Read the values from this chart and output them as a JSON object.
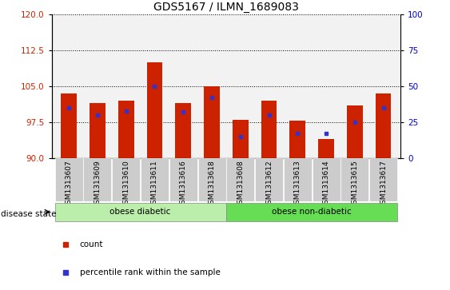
{
  "title": "GDS5167 / ILMN_1689083",
  "samples": [
    "GSM1313607",
    "GSM1313609",
    "GSM1313610",
    "GSM1313611",
    "GSM1313616",
    "GSM1313618",
    "GSM1313608",
    "GSM1313612",
    "GSM1313613",
    "GSM1313614",
    "GSM1313615",
    "GSM1313617"
  ],
  "count_values": [
    103.5,
    101.5,
    102.0,
    110.0,
    101.5,
    105.0,
    98.0,
    102.0,
    97.8,
    94.0,
    101.0,
    103.5
  ],
  "percentile_values": [
    35,
    30,
    33,
    50,
    32,
    42,
    15,
    30,
    17,
    17,
    25,
    35
  ],
  "ylim_left": [
    90,
    120
  ],
  "ylim_right": [
    0,
    100
  ],
  "yticks_left": [
    90,
    97.5,
    105,
    112.5,
    120
  ],
  "yticks_right": [
    0,
    25,
    50,
    75,
    100
  ],
  "bar_bottom": 90,
  "bar_color": "#cc2200",
  "marker_color": "#3333cc",
  "grid_color": "black",
  "bg_plot": "#f2f2f2",
  "group1_label": "obese diabetic",
  "group2_label": "obese non-diabetic",
  "group1_color": "#bbeeaa",
  "group2_color": "#66dd55",
  "group1_count": 6,
  "group2_count": 6,
  "disease_state_label": "disease state",
  "legend_count_label": "count",
  "legend_pct_label": "percentile rank within the sample",
  "title_fontsize": 10,
  "tick_fontsize": 7.5,
  "bar_width": 0.55,
  "left_axis_color": "#cc2200",
  "right_axis_color": "#0000cc"
}
